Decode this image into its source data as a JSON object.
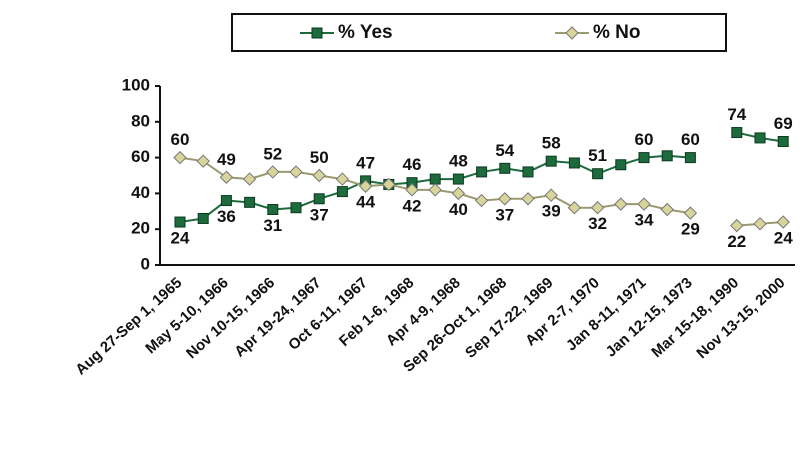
{
  "chart_data": {
    "type": "line",
    "categories": [
      "Aug 27-Sep 1, 1965",
      null,
      "May 5-10, 1966",
      null,
      "Nov 10-15, 1966",
      null,
      "Apr 19-24, 1967",
      null,
      "Oct 6-11, 1967",
      null,
      "Feb 1-6, 1968",
      null,
      "Apr 4-9, 1968",
      null,
      "Sep 26-Oct 1, 1968",
      null,
      "Sep 17-22, 1969",
      null,
      "Apr 2-7, 1970",
      null,
      "Jan 8-11, 1971",
      null,
      "Jan 12-15, 1973",
      null,
      "Mar 15-18, 1990",
      null,
      "Nov 13-15, 2000"
    ],
    "series": [
      {
        "name": "% Yes",
        "color": "#1d6b3c",
        "marker": "square",
        "values": [
          24,
          26,
          36,
          35,
          31,
          32,
          37,
          41,
          47,
          45,
          46,
          48,
          48,
          52,
          54,
          52,
          58,
          57,
          51,
          56,
          60,
          61,
          60,
          null,
          74,
          71,
          69
        ]
      },
      {
        "name": "% No",
        "color": "#d8d49a",
        "marker": "diamond",
        "values": [
          60,
          58,
          49,
          48,
          52,
          52,
          50,
          48,
          44,
          45,
          42,
          42,
          40,
          36,
          37,
          37,
          39,
          32,
          32,
          34,
          34,
          31,
          29,
          null,
          22,
          23,
          24
        ]
      }
    ],
    "ylim": [
      0,
      100
    ],
    "yticks": [
      0,
      20,
      40,
      60,
      80,
      100
    ],
    "grid": false
  }
}
